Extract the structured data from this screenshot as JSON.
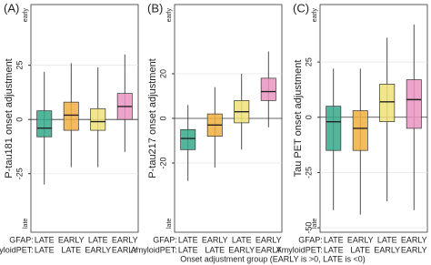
{
  "xlabel": "Onset adjustment group (EARLY is >0, LATE is <0)",
  "chart_data": [
    {
      "type": "box",
      "panel": "(A)",
      "ylabel": "P-tau181 onset adjustment",
      "early": "early",
      "late": "late",
      "row_labels": [
        "GFAP:",
        "AmyloidPET:"
      ],
      "categories": [
        [
          "LATE",
          "EARLY",
          "LATE",
          "EARLY"
        ],
        [
          "LATE",
          "LATE",
          "EARLY",
          "EARLY"
        ]
      ],
      "boxes": [
        {
          "color": "#35a88a",
          "min": -30,
          "q1": -8,
          "median": -4,
          "q3": 4,
          "max": 22
        },
        {
          "color": "#f0b040",
          "min": -22,
          "q1": -5,
          "median": 2,
          "q3": 8,
          "max": 26
        },
        {
          "color": "#eee07a",
          "min": -22,
          "q1": -5,
          "median": -1,
          "q3": 5,
          "max": 24
        },
        {
          "color": "#e994c2",
          "min": -15,
          "q1": 0,
          "median": 6,
          "q3": 12,
          "max": 30
        }
      ],
      "ylim": [
        -52,
        53
      ],
      "yticks": [
        -25,
        0,
        25
      ]
    },
    {
      "type": "box",
      "panel": "(B)",
      "ylabel": "P-tau217 onset adjustment",
      "early": "early",
      "late": "late",
      "row_labels": [
        "GFAP:",
        "AmyloidPET:"
      ],
      "categories": [
        [
          "LATE",
          "EARLY",
          "LATE",
          "EARLY"
        ],
        [
          "LATE",
          "LATE",
          "EARLY",
          "EARLY"
        ]
      ],
      "boxes": [
        {
          "color": "#35a88a",
          "min": -28,
          "q1": -14,
          "median": -9,
          "q3": -5,
          "max": 6
        },
        {
          "color": "#f0b040",
          "min": -22,
          "q1": -8,
          "median": -3,
          "q3": 2,
          "max": 14
        },
        {
          "color": "#eee07a",
          "min": -14,
          "q1": -2,
          "median": 3,
          "q3": 8,
          "max": 20
        },
        {
          "color": "#e994c2",
          "min": -4,
          "q1": 8,
          "median": 12,
          "q3": 18,
          "max": 30
        }
      ],
      "ylim": [
        -51,
        51
      ],
      "yticks": [
        -20,
        0,
        20
      ]
    },
    {
      "type": "box",
      "panel": "(C)",
      "ylabel": "Tau PET onset adjustment",
      "early": "early",
      "late": "late",
      "row_labels": [
        "GFAP:",
        "AmyloidPET:"
      ],
      "categories": [
        [
          "LATE",
          "EARLY",
          "LATE",
          "EARLY"
        ],
        [
          "LATE",
          "LATE",
          "EARLY",
          "EARLY"
        ]
      ],
      "boxes": [
        {
          "color": "#35a88a",
          "min": -42,
          "q1": -15,
          "median": -2,
          "q3": 5,
          "max": 22
        },
        {
          "color": "#f0b040",
          "min": -44,
          "q1": -15,
          "median": -5,
          "q3": 3,
          "max": 22
        },
        {
          "color": "#eee07a",
          "min": -38,
          "q1": -2,
          "median": 7,
          "q3": 15,
          "max": 36
        },
        {
          "color": "#e994c2",
          "min": -42,
          "q1": -5,
          "median": 8,
          "q3": 17,
          "max": 42
        }
      ],
      "ylim": [
        -52,
        51
      ],
      "yticks": [
        -50,
        -25,
        0,
        25
      ]
    }
  ]
}
